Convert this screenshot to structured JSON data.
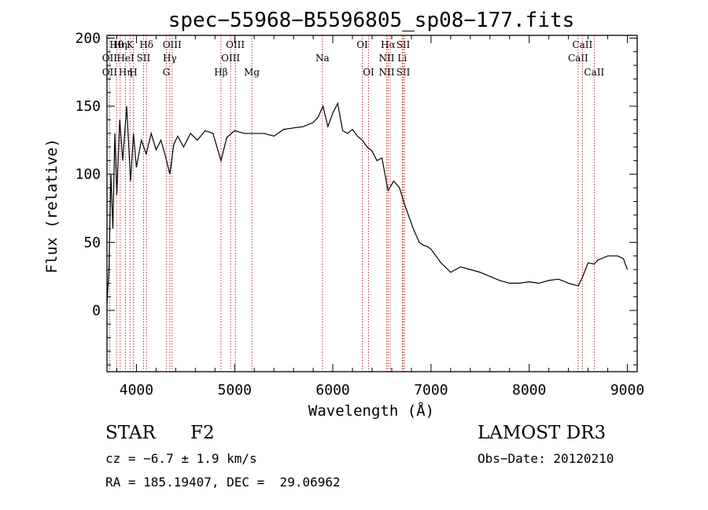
{
  "chart_data": {
    "type": "line",
    "title": "spec−55968−B5596805_sp08−177.fits",
    "xlabel": "Wavelength (Å)",
    "ylabel": "Flux (relative)",
    "xlim": [
      3700,
      9100
    ],
    "ylim": [
      -45,
      202
    ],
    "x_ticks": [
      4000,
      5000,
      6000,
      7000,
      8000,
      9000
    ],
    "y_ticks": [
      0,
      50,
      100,
      150,
      200
    ],
    "series": [
      {
        "x": [
          3700,
          3720,
          3740,
          3760,
          3780,
          3800,
          3830,
          3860,
          3900,
          3940,
          3970,
          4000,
          4050,
          4100,
          4150,
          4200,
          4250,
          4300,
          4340,
          4380,
          4420,
          4480,
          4550,
          4620,
          4700,
          4780,
          4861,
          4920,
          5000,
          5100,
          5200,
          5300,
          5400,
          5500,
          5600,
          5700,
          5800,
          5850,
          5900,
          5950,
          6000,
          6050,
          6100,
          6150,
          6200,
          6250,
          6300,
          6350,
          6400,
          6450,
          6500,
          6563,
          6620,
          6680,
          6730,
          6780,
          6820,
          6850,
          6880,
          6920,
          6960,
          7000,
          7100,
          7200,
          7300,
          7400,
          7500,
          7600,
          7700,
          7800,
          7900,
          8000,
          8100,
          8200,
          8300,
          8400,
          8500,
          8540,
          8600,
          8662,
          8700,
          8800,
          8900,
          8960,
          9000
        ],
        "y": [
          5,
          30,
          100,
          60,
          130,
          85,
          140,
          110,
          150,
          95,
          130,
          105,
          125,
          115,
          130,
          118,
          125,
          112,
          100,
          122,
          128,
          120,
          130,
          125,
          132,
          130,
          110,
          127,
          132,
          130,
          130,
          130,
          128,
          133,
          134,
          135,
          138,
          142,
          150,
          135,
          145,
          152,
          132,
          130,
          133,
          128,
          125,
          120,
          117,
          110,
          112,
          88,
          95,
          90,
          78,
          68,
          60,
          55,
          50,
          48,
          47,
          45,
          35,
          28,
          32,
          30,
          28,
          25,
          22,
          20,
          20,
          21,
          20,
          22,
          23,
          20,
          18,
          24,
          35,
          34,
          37,
          40,
          40,
          38,
          30
        ]
      }
    ],
    "line_markers": [
      {
        "wl": 3727,
        "top": "",
        "mid": "OII",
        "bot": "OII"
      },
      {
        "wl": 3798,
        "top": "Hθ",
        "mid": "",
        "bot": ""
      },
      {
        "wl": 3835,
        "top": "Hη",
        "mid": "",
        "bot": ""
      },
      {
        "wl": 3889,
        "top": "",
        "mid": "HeI",
        "bot": "Hη"
      },
      {
        "wl": 3934,
        "top": "K",
        "mid": "",
        "bot": ""
      },
      {
        "wl": 3968,
        "top": "",
        "mid": "",
        "bot": "H"
      },
      {
        "wl": 4072,
        "top": "",
        "mid": "SII",
        "bot": ""
      },
      {
        "wl": 4102,
        "top": "Hδ",
        "mid": "",
        "bot": ""
      },
      {
        "wl": 4304,
        "top": "",
        "mid": "",
        "bot": "G"
      },
      {
        "wl": 4340,
        "top": "",
        "mid": "Hγ",
        "bot": ""
      },
      {
        "wl": 4363,
        "top": "OIII",
        "mid": "",
        "bot": ""
      },
      {
        "wl": 4861,
        "top": "",
        "mid": "",
        "bot": "Hβ"
      },
      {
        "wl": 4959,
        "top": "",
        "mid": "OIII",
        "bot": ""
      },
      {
        "wl": 5007,
        "top": "OIII",
        "mid": "",
        "bot": ""
      },
      {
        "wl": 5175,
        "top": "",
        "mid": "",
        "bot": "Mg"
      },
      {
        "wl": 5894,
        "top": "",
        "mid": "Na",
        "bot": ""
      },
      {
        "wl": 6300,
        "top": "OI",
        "mid": "",
        "bot": ""
      },
      {
        "wl": 6364,
        "top": "",
        "mid": "",
        "bot": "OI"
      },
      {
        "wl": 6548,
        "top": "",
        "mid": "NII",
        "bot": "NII"
      },
      {
        "wl": 6563,
        "top": "Hα",
        "mid": "",
        "bot": ""
      },
      {
        "wl": 6584,
        "top": "",
        "mid": "",
        "bot": ""
      },
      {
        "wl": 6707,
        "top": "",
        "mid": "Li",
        "bot": ""
      },
      {
        "wl": 6717,
        "top": "SII",
        "mid": "",
        "bot": "SII"
      },
      {
        "wl": 6731,
        "top": "",
        "mid": "",
        "bot": ""
      },
      {
        "wl": 8498,
        "top": "",
        "mid": "CaII",
        "bot": ""
      },
      {
        "wl": 8542,
        "top": "CaII",
        "mid": "",
        "bot": ""
      },
      {
        "wl": 8662,
        "top": "",
        "mid": "",
        "bot": "CaII"
      }
    ]
  },
  "info": {
    "class_label": "STAR",
    "subclass": "F2",
    "survey": "LAMOST DR3",
    "cz_line": "cz = −6.7 ± 1.9 km/s",
    "obs_date": "Obs−Date: 20120210",
    "coords": "RA = 185.19407, DEC =  29.06962"
  }
}
